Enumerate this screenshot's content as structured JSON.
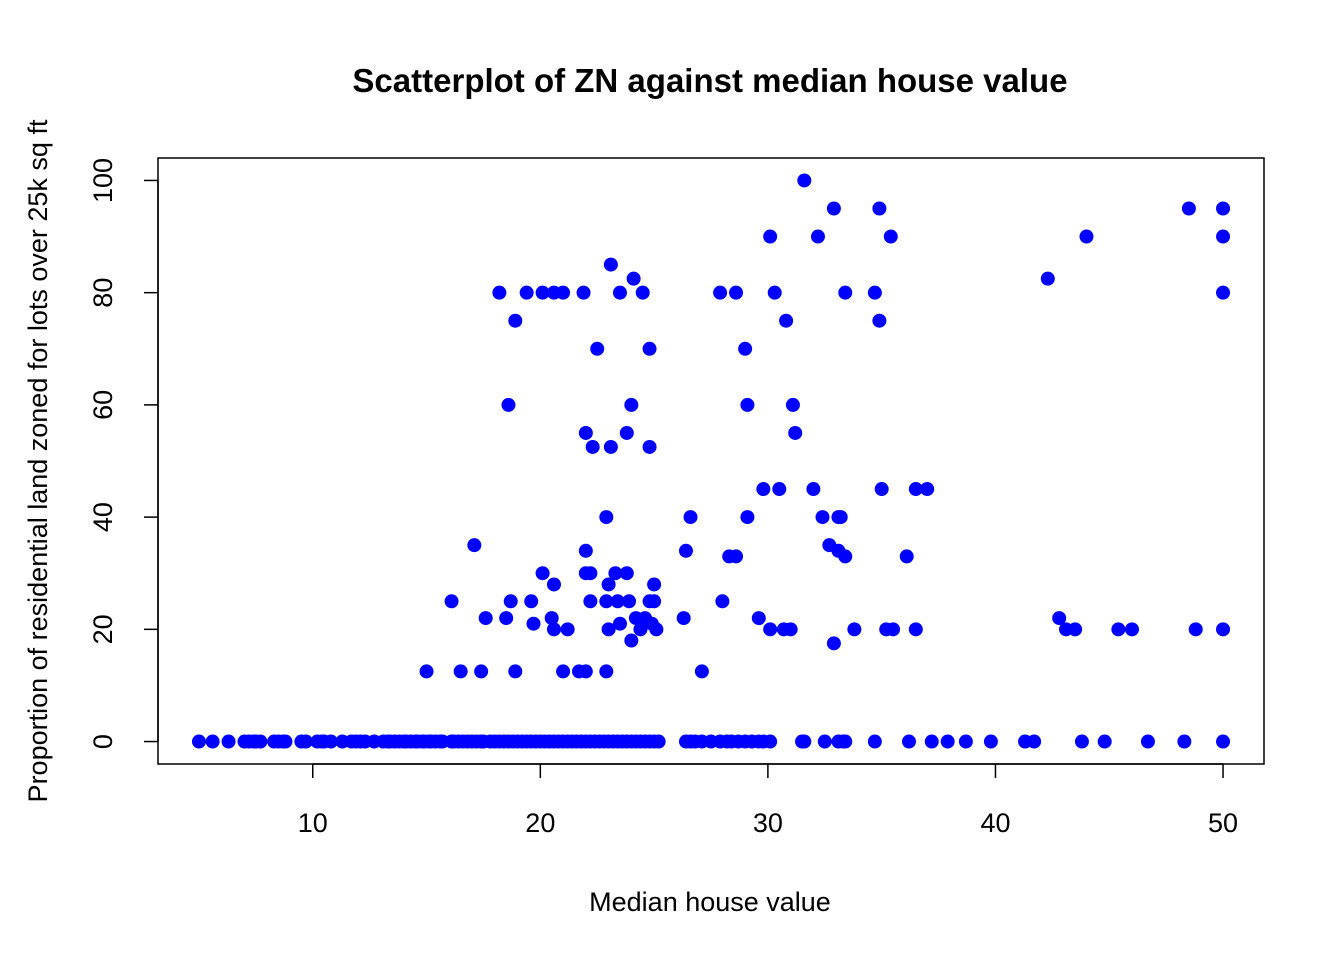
{
  "chart_data": {
    "type": "scatter",
    "title": "Scatterplot of ZN against median house value",
    "xlabel": "Median house value",
    "ylabel": "Proportion of residential land zoned for lots over 25k sq ft",
    "xlim": [
      3.2,
      51.8
    ],
    "ylim": [
      -4,
      104
    ],
    "x_ticks": [
      10,
      20,
      30,
      40,
      50
    ],
    "y_ticks": [
      0,
      20,
      40,
      60,
      80,
      100
    ],
    "grid": false,
    "legend": "none",
    "point_color": "#0000FF",
    "points": [
      [
        5.0,
        0
      ],
      [
        5.6,
        0
      ],
      [
        6.3,
        0
      ],
      [
        7.0,
        0
      ],
      [
        7.2,
        0
      ],
      [
        7.5,
        0
      ],
      [
        7.4,
        0
      ],
      [
        7.7,
        0
      ],
      [
        8.3,
        0
      ],
      [
        8.5,
        0
      ],
      [
        8.7,
        0
      ],
      [
        8.8,
        0
      ],
      [
        9.5,
        0
      ],
      [
        9.7,
        0
      ],
      [
        10.2,
        0
      ],
      [
        10.4,
        0
      ],
      [
        10.5,
        0
      ],
      [
        10.8,
        0
      ],
      [
        11.3,
        0
      ],
      [
        11.7,
        0
      ],
      [
        11.9,
        0
      ],
      [
        12.1,
        0
      ],
      [
        12.3,
        0
      ],
      [
        12.7,
        0
      ],
      [
        13.1,
        0
      ],
      [
        13.3,
        0
      ],
      [
        13.4,
        0
      ],
      [
        13.6,
        0
      ],
      [
        13.8,
        0
      ],
      [
        14.0,
        0
      ],
      [
        14.1,
        0
      ],
      [
        14.3,
        0
      ],
      [
        14.5,
        0
      ],
      [
        14.6,
        0
      ],
      [
        14.8,
        0
      ],
      [
        14.9,
        0
      ],
      [
        15.1,
        0
      ],
      [
        15.2,
        0
      ],
      [
        15.4,
        0
      ],
      [
        15.6,
        0
      ],
      [
        15.7,
        0
      ],
      [
        16.1,
        0
      ],
      [
        16.2,
        0
      ],
      [
        16.4,
        0
      ],
      [
        16.6,
        0
      ],
      [
        16.8,
        0
      ],
      [
        17.0,
        0
      ],
      [
        17.2,
        0
      ],
      [
        17.4,
        0
      ],
      [
        17.5,
        0
      ],
      [
        17.8,
        0
      ],
      [
        18.0,
        0
      ],
      [
        18.2,
        0
      ],
      [
        18.4,
        0
      ],
      [
        18.6,
        0
      ],
      [
        18.8,
        0
      ],
      [
        19.0,
        0
      ],
      [
        19.2,
        0
      ],
      [
        19.4,
        0
      ],
      [
        19.6,
        0
      ],
      [
        19.8,
        0
      ],
      [
        20.0,
        0
      ],
      [
        20.2,
        0
      ],
      [
        20.4,
        0
      ],
      [
        20.6,
        0
      ],
      [
        20.8,
        0
      ],
      [
        21.0,
        0
      ],
      [
        21.2,
        0
      ],
      [
        21.4,
        0
      ],
      [
        21.6,
        0
      ],
      [
        21.8,
        0
      ],
      [
        22.0,
        0
      ],
      [
        22.2,
        0
      ],
      [
        22.4,
        0
      ],
      [
        22.6,
        0
      ],
      [
        22.8,
        0
      ],
      [
        23.0,
        0
      ],
      [
        23.2,
        0
      ],
      [
        23.4,
        0
      ],
      [
        23.6,
        0
      ],
      [
        23.8,
        0
      ],
      [
        24.0,
        0
      ],
      [
        24.2,
        0
      ],
      [
        24.4,
        0
      ],
      [
        24.6,
        0
      ],
      [
        24.8,
        0
      ],
      [
        25.0,
        0
      ],
      [
        25.2,
        0
      ],
      [
        26.4,
        0
      ],
      [
        26.6,
        0
      ],
      [
        26.8,
        0
      ],
      [
        27.1,
        0
      ],
      [
        27.5,
        0
      ],
      [
        27.9,
        0
      ],
      [
        28.2,
        0
      ],
      [
        28.4,
        0
      ],
      [
        28.7,
        0
      ],
      [
        29.0,
        0
      ],
      [
        29.3,
        0
      ],
      [
        29.6,
        0
      ],
      [
        29.8,
        0
      ],
      [
        30.1,
        0
      ],
      [
        31.5,
        0
      ],
      [
        31.6,
        0
      ],
      [
        32.5,
        0
      ],
      [
        33.1,
        0
      ],
      [
        33.3,
        0
      ],
      [
        33.4,
        0
      ],
      [
        34.7,
        0
      ],
      [
        36.2,
        0
      ],
      [
        37.2,
        0
      ],
      [
        37.9,
        0
      ],
      [
        38.7,
        0
      ],
      [
        39.8,
        0
      ],
      [
        41.3,
        0
      ],
      [
        41.7,
        0
      ],
      [
        43.8,
        0
      ],
      [
        44.8,
        0
      ],
      [
        46.7,
        0
      ],
      [
        48.3,
        0
      ],
      [
        50.0,
        0
      ],
      [
        15.0,
        12.5
      ],
      [
        16.5,
        12.5
      ],
      [
        17.4,
        12.5
      ],
      [
        18.9,
        12.5
      ],
      [
        21.0,
        12.5
      ],
      [
        21.7,
        12.5
      ],
      [
        22.0,
        12.5
      ],
      [
        22.9,
        12.5
      ],
      [
        27.1,
        12.5
      ],
      [
        32.9,
        17.5
      ],
      [
        24.0,
        18
      ],
      [
        17.6,
        22
      ],
      [
        18.5,
        22
      ],
      [
        19.7,
        21
      ],
      [
        20.5,
        22
      ],
      [
        20.6,
        20
      ],
      [
        21.2,
        20
      ],
      [
        23.0,
        20
      ],
      [
        23.5,
        21
      ],
      [
        24.2,
        22
      ],
      [
        24.4,
        20
      ],
      [
        24.6,
        22
      ],
      [
        24.9,
        21
      ],
      [
        25.1,
        20
      ],
      [
        26.3,
        22
      ],
      [
        29.6,
        22
      ],
      [
        30.1,
        20
      ],
      [
        30.7,
        20
      ],
      [
        31.0,
        20
      ],
      [
        33.8,
        20
      ],
      [
        35.2,
        20
      ],
      [
        35.5,
        20
      ],
      [
        36.5,
        20
      ],
      [
        42.8,
        22
      ],
      [
        43.1,
        20
      ],
      [
        43.5,
        20
      ],
      [
        45.4,
        20
      ],
      [
        46.0,
        20
      ],
      [
        48.8,
        20
      ],
      [
        50.0,
        20
      ],
      [
        16.1,
        25
      ],
      [
        18.7,
        25
      ],
      [
        19.6,
        25
      ],
      [
        22.2,
        25
      ],
      [
        22.9,
        25
      ],
      [
        23.4,
        25
      ],
      [
        23.9,
        25
      ],
      [
        24.8,
        25
      ],
      [
        25.0,
        25
      ],
      [
        28.0,
        25
      ],
      [
        20.1,
        30
      ],
      [
        20.6,
        28
      ],
      [
        22.0,
        30
      ],
      [
        22.2,
        30
      ],
      [
        23.0,
        28
      ],
      [
        23.3,
        30
      ],
      [
        23.8,
        30
      ],
      [
        25.0,
        28
      ],
      [
        17.1,
        35
      ],
      [
        22.0,
        34
      ],
      [
        26.4,
        34
      ],
      [
        28.3,
        33
      ],
      [
        28.6,
        33
      ],
      [
        32.7,
        35
      ],
      [
        33.1,
        34
      ],
      [
        33.4,
        33
      ],
      [
        36.1,
        33
      ],
      [
        22.9,
        40
      ],
      [
        26.6,
        40
      ],
      [
        29.1,
        40
      ],
      [
        32.4,
        40
      ],
      [
        33.1,
        40
      ],
      [
        33.2,
        40
      ],
      [
        29.8,
        45
      ],
      [
        30.5,
        45
      ],
      [
        32.0,
        45
      ],
      [
        35.0,
        45
      ],
      [
        36.5,
        45
      ],
      [
        37.0,
        45
      ],
      [
        22.0,
        55
      ],
      [
        22.3,
        52.5
      ],
      [
        23.1,
        52.5
      ],
      [
        23.8,
        55
      ],
      [
        24.8,
        52.5
      ],
      [
        31.2,
        55
      ],
      [
        18.6,
        60
      ],
      [
        24.0,
        60
      ],
      [
        29.1,
        60
      ],
      [
        31.1,
        60
      ],
      [
        22.5,
        70
      ],
      [
        24.8,
        70
      ],
      [
        29.0,
        70
      ],
      [
        18.9,
        75
      ],
      [
        30.8,
        75
      ],
      [
        34.9,
        75
      ],
      [
        18.2,
        80
      ],
      [
        19.4,
        80
      ],
      [
        20.1,
        80
      ],
      [
        20.6,
        80
      ],
      [
        21.0,
        80
      ],
      [
        21.9,
        80
      ],
      [
        23.5,
        80
      ],
      [
        24.5,
        80
      ],
      [
        24.1,
        82.5
      ],
      [
        27.9,
        80
      ],
      [
        28.6,
        80
      ],
      [
        30.3,
        80
      ],
      [
        33.4,
        80
      ],
      [
        34.7,
        80
      ],
      [
        42.3,
        82.5
      ],
      [
        50.0,
        80
      ],
      [
        23.1,
        85
      ],
      [
        30.1,
        90
      ],
      [
        32.2,
        90
      ],
      [
        35.4,
        90
      ],
      [
        44.0,
        90
      ],
      [
        50.0,
        90
      ],
      [
        32.9,
        95
      ],
      [
        34.9,
        95
      ],
      [
        48.5,
        95
      ],
      [
        50.0,
        95
      ],
      [
        31.6,
        100
      ]
    ]
  }
}
